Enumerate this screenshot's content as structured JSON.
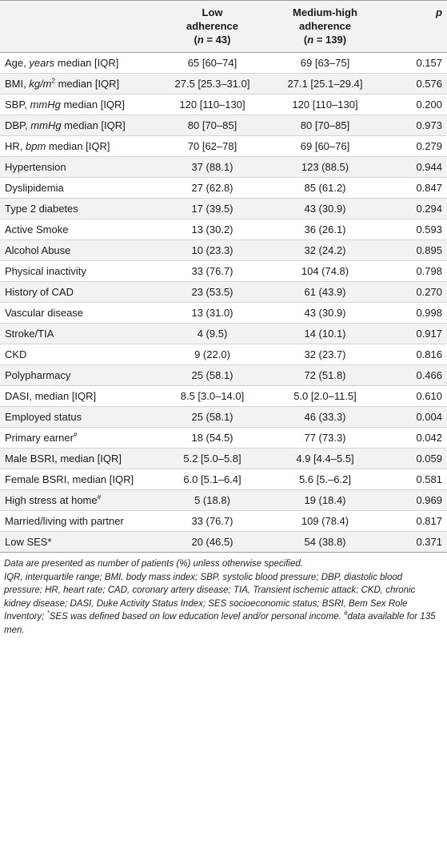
{
  "header": {
    "col_label": "",
    "low_line1": "Low",
    "low_line2": "adherence",
    "low_n": "(n = 43)",
    "med_line1": "Medium-high",
    "med_line2": "adherence",
    "med_n": "(n = 139)",
    "p": "p"
  },
  "rows": [
    {
      "label": "Age, years median [IQR]",
      "low": "65 [60–74]",
      "med": "69 [63–75]",
      "p": "0.157"
    },
    {
      "label": "BMI, kg/m2 median [IQR]",
      "low": "27.5 [25.3–31.0]",
      "med": "27.1 [25.1–29.4]",
      "p": "0.576"
    },
    {
      "label": "SBP, mmHg median [IQR]",
      "low": "120 [110–130]",
      "med": "120 [110–130]",
      "p": "0.200"
    },
    {
      "label": "DBP, mmHg median [IQR]",
      "low": "80 [70–85]",
      "med": "80 [70–85]",
      "p": "0.973"
    },
    {
      "label": "HR, bpm median [IQR]",
      "low": "70 [62–78]",
      "med": "69 [60–76]",
      "p": "0.279"
    },
    {
      "label": "Hypertension",
      "low": "37 (88.1)",
      "med": "123 (88.5)",
      "p": "0.944"
    },
    {
      "label": "Dyslipidemia",
      "low": "27 (62.8)",
      "med": "85 (61.2)",
      "p": "0.847"
    },
    {
      "label": "Type 2 diabetes",
      "low": "17 (39.5)",
      "med": "43 (30.9)",
      "p": "0.294"
    },
    {
      "label": "Active Smoke",
      "low": "13 (30.2)",
      "med": "36 (26.1)",
      "p": "0.593"
    },
    {
      "label": "Alcohol Abuse",
      "low": "10 (23.3)",
      "med": "32 (24.2)",
      "p": "0.895"
    },
    {
      "label": "Physical inactivity",
      "low": "33 (76.7)",
      "med": "104 (74.8)",
      "p": "0.798"
    },
    {
      "label": "History of CAD",
      "low": "23 (53.5)",
      "med": "61 (43.9)",
      "p": "0.270"
    },
    {
      "label": "Vascular disease",
      "low": "13 (31.0)",
      "med": "43 (30.9)",
      "p": "0.998"
    },
    {
      "label": "Stroke/TIA",
      "low": "4 (9.5)",
      "med": "14 (10.1)",
      "p": "0.917"
    },
    {
      "label": "CKD",
      "low": "9 (22.0)",
      "med": "32 (23.7)",
      "p": "0.816"
    },
    {
      "label": "Polypharmacy",
      "low": "25 (58.1)",
      "med": "72 (51.8)",
      "p": "0.466"
    },
    {
      "label": "DASI, median [IQR]",
      "low": "8.5 [3.0–14.0]",
      "med": "5.0 [2.0–11.5]",
      "p": "0.610"
    },
    {
      "label": "Employed status",
      "low": "25 (58.1)",
      "med": "46 (33.3)",
      "p": "0.004"
    },
    {
      "label": "Primary earner#",
      "low": "18 (54.5)",
      "med": "77 (73.3)",
      "p": "0.042"
    },
    {
      "label": "Male BSRI, median [IQR]",
      "low": "5.2 [5.0–5.8]",
      "med": "4.9 [4.4–5.5]",
      "p": "0.059"
    },
    {
      "label": "Female BSRI, median [IQR]",
      "low": "6.0 [5.1–6.4]",
      "med": "5.6 [5.–6.2]",
      "p": "0.581"
    },
    {
      "label": "High stress at home#",
      "low": "5 (18.8)",
      "med": "19 (18.4)",
      "p": "0.969"
    },
    {
      "label": "Married/living with partner",
      "low": "33 (76.7)",
      "med": "109 (78.4)",
      "p": "0.817"
    },
    {
      "label": "Low SES*",
      "low": "20 (46.5)",
      "med": "54 (38.8)",
      "p": "0.371"
    }
  ],
  "footnotes": {
    "line1": "Data are presented as number of patients (%) unless otherwise specified.",
    "line2": "IQR, interquartile range; BMI, body mass index; SBP, systolic blood pressure; DBP, diastolic blood pressure; HR, heart rate; CAD, coronary artery disease; TIA, Transient ischemic attack; CKD, chronic kidney disease; DASI, Duke Activity Status Index; SES socioeconomic status; BSRI, Bem Sex Role Inventory; *SES was defined based on low education level and/or personal income. #data available for 135 men."
  }
}
